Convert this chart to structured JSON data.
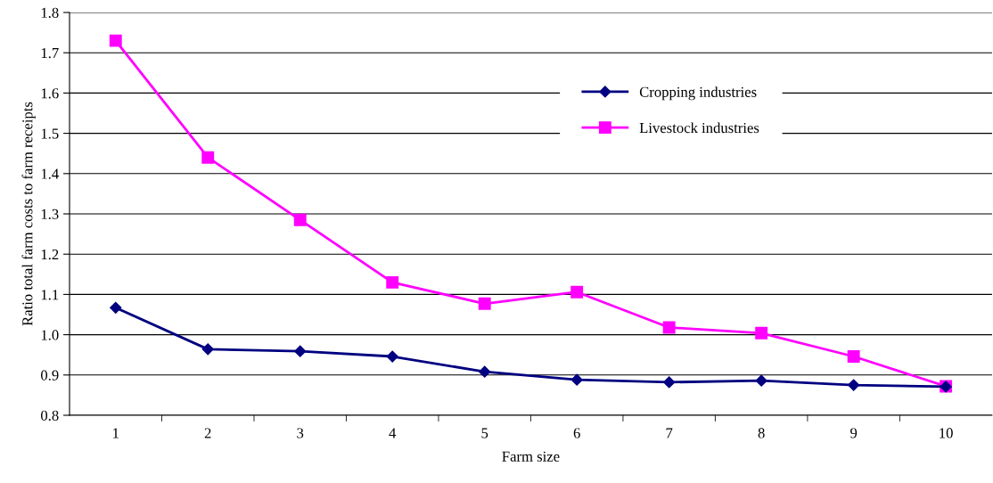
{
  "chart_data": {
    "type": "line",
    "xlabel": "Farm size",
    "ylabel": "Ratio total farm costs to farm receipts",
    "categories": [
      "1",
      "2",
      "3",
      "4",
      "5",
      "6",
      "7",
      "8",
      "9",
      "10"
    ],
    "series": [
      {
        "name": "Cropping industries",
        "color": "#000080",
        "marker": "diamond",
        "values": [
          1.067,
          0.964,
          0.959,
          0.946,
          0.908,
          0.888,
          0.882,
          0.886,
          0.875,
          0.871
        ]
      },
      {
        "name": "Livestock industries",
        "color": "#ff00ff",
        "marker": "square",
        "values": [
          1.73,
          1.44,
          1.285,
          1.13,
          1.077,
          1.106,
          1.018,
          1.004,
          0.946,
          0.872
        ]
      }
    ],
    "ylim": [
      0.8,
      1.8
    ],
    "yticks": [
      {
        "value": 0.8,
        "label": "0.8"
      },
      {
        "value": 0.9,
        "label": "0.9"
      },
      {
        "value": 1.0,
        "label": "1.0"
      },
      {
        "value": 1.1,
        "label": "1.1"
      },
      {
        "value": 1.2,
        "label": "1.2"
      },
      {
        "value": 1.3,
        "label": "1.3"
      },
      {
        "value": 1.4,
        "label": "1.4"
      },
      {
        "value": 1.5,
        "label": "1.5"
      },
      {
        "value": 1.6,
        "label": "1.6"
      },
      {
        "value": 1.7,
        "label": "1.7"
      },
      {
        "value": 1.8,
        "label": "1.8"
      }
    ],
    "grid": "y",
    "legend": "top right",
    "line_style": "solid"
  }
}
